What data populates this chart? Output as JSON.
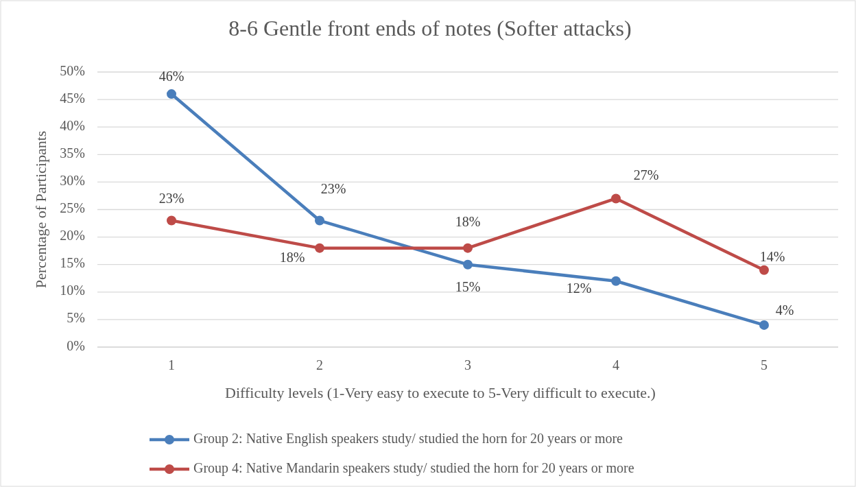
{
  "chart_data": {
    "type": "line",
    "title": "8-6 Gentle front ends of notes (Softer attacks)",
    "xlabel": "Difficulty levels (1-Very easy to execute to 5-Very difficult to execute.)",
    "ylabel": "Percentage of Participants",
    "categories": [
      "1",
      "2",
      "3",
      "4",
      "5"
    ],
    "series": [
      {
        "name": "Group 2: Native English speakers study/ studied the horn for 20 years or more",
        "color": "#4a7ebb",
        "values": [
          46,
          23,
          15,
          12,
          4
        ],
        "value_labels": [
          "46%",
          "23%",
          "15%",
          "12%",
          "4%"
        ]
      },
      {
        "name": "Group 4: Native Mandarin speakers study/ studied the horn for 20 years or more",
        "color": "#be4b48",
        "values": [
          23,
          18,
          18,
          27,
          14
        ],
        "value_labels": [
          "23%",
          "18%",
          "18%",
          "27%",
          "14%"
        ]
      }
    ],
    "ylim": [
      0,
      50
    ],
    "yticks": [
      {
        "value": 0,
        "label": "0%"
      },
      {
        "value": 5,
        "label": "5%"
      },
      {
        "value": 10,
        "label": "10%"
      },
      {
        "value": 15,
        "label": "15%"
      },
      {
        "value": 20,
        "label": "20%"
      },
      {
        "value": 25,
        "label": "25%"
      },
      {
        "value": 30,
        "label": "30%"
      },
      {
        "value": 35,
        "label": "35%"
      },
      {
        "value": 40,
        "label": "40%"
      },
      {
        "value": 45,
        "label": "45%"
      },
      {
        "value": 50,
        "label": "50%"
      }
    ],
    "grid": "y",
    "legend": "bottom",
    "marker": "circle",
    "line_style": "solid"
  }
}
